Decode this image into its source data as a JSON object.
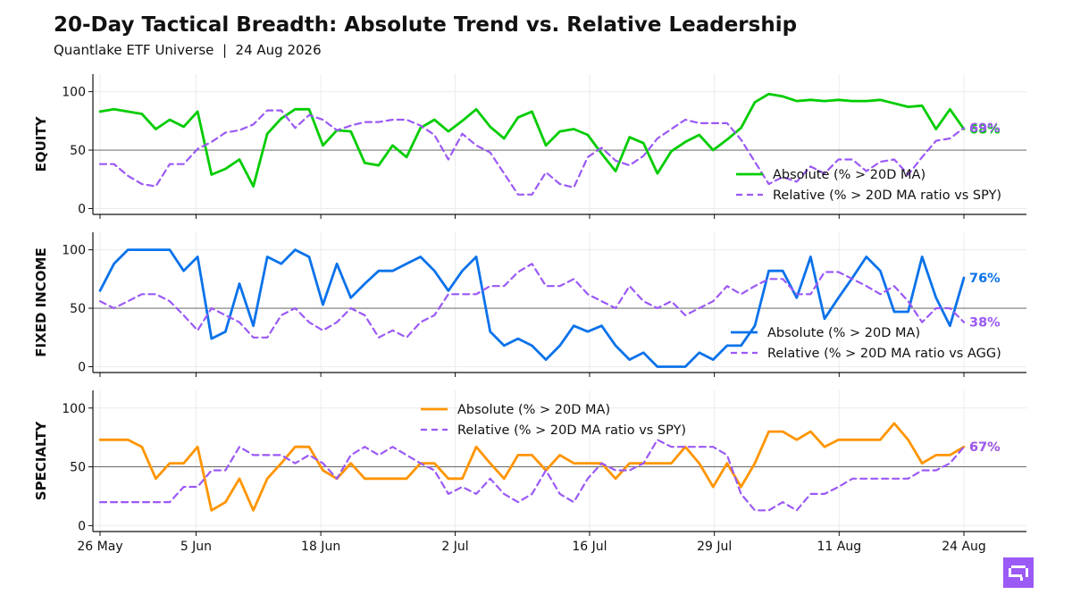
{
  "header": {
    "title": "20-Day Tactical Breadth: Absolute Trend vs. Relative Leadership",
    "subtitle": "Quantlake ETF Universe  |  24 Aug 2026"
  },
  "colors": {
    "equity_absolute": "#00cc00",
    "fixed_income_absolute": "#0a72ea",
    "specialty_absolute": "#ff9500",
    "relative": "#9b59f5",
    "logo_bg": "#9b59f5"
  },
  "chart_data": [
    {
      "type": "line",
      "panel": "equity",
      "ylabel": "EQUITY",
      "ylim": [
        -5,
        115
      ],
      "yticks": [
        0,
        50,
        100
      ],
      "reference_line": 50,
      "x_start": "2026-05-26",
      "x_end": "2026-08-24",
      "xticks": [
        "26 May",
        "5 Jun",
        "18 Jun",
        "2 Jul",
        "16 Jul",
        "29 Jul",
        "11 Aug",
        "24 Aug"
      ],
      "grid": true,
      "legend_position": "lower-right",
      "series": [
        {
          "name": "Absolute (% > 20D MA)",
          "style": "solid",
          "end_label": "68%",
          "values": [
            83,
            85,
            83,
            81,
            68,
            76,
            70,
            83,
            29,
            34,
            42,
            19,
            64,
            77,
            85,
            85,
            54,
            67,
            66,
            39,
            37,
            54,
            44,
            69,
            76,
            66,
            75,
            85,
            70,
            60,
            78,
            83,
            54,
            66,
            68,
            63,
            47,
            32,
            61,
            56,
            30,
            49,
            57,
            63,
            50,
            59,
            69,
            91,
            98,
            96,
            92,
            93,
            92,
            93,
            92,
            92,
            93,
            90,
            87,
            88,
            68,
            85,
            68
          ]
        },
        {
          "name": "Relative (% > 20D MA ratio vs SPY)",
          "style": "dashed",
          "end_label": "69%",
          "values": [
            38,
            38,
            28,
            21,
            19,
            38,
            38,
            51,
            57,
            65,
            67,
            72,
            84,
            84,
            69,
            80,
            76,
            67,
            71,
            74,
            74,
            76,
            76,
            71,
            63,
            42,
            64,
            54,
            48,
            30,
            12,
            12,
            31,
            21,
            18,
            44,
            52,
            41,
            37,
            45,
            60,
            68,
            76,
            73,
            73,
            73,
            59,
            40,
            21,
            27,
            23,
            36,
            30,
            42,
            42,
            32,
            40,
            42,
            29,
            44,
            58,
            60,
            69
          ]
        }
      ]
    },
    {
      "type": "line",
      "panel": "fixed_income",
      "ylabel": "FIXED INCOME",
      "ylim": [
        -5,
        115
      ],
      "yticks": [
        0,
        50,
        100
      ],
      "reference_line": 50,
      "grid": true,
      "legend_position": "lower-right",
      "series": [
        {
          "name": "Absolute (% > 20D MA)",
          "style": "solid",
          "end_label": "76%",
          "values": [
            65,
            88,
            100,
            100,
            100,
            100,
            82,
            94,
            24,
            30,
            71,
            35,
            94,
            88,
            100,
            94,
            53,
            88,
            59,
            71,
            82,
            82,
            88,
            94,
            82,
            65,
            82,
            94,
            30,
            18,
            24,
            18,
            6,
            18,
            35,
            30,
            35,
            18,
            6,
            12,
            0,
            0,
            0,
            12,
            6,
            18,
            18,
            35,
            82,
            82,
            59,
            94,
            41,
            59,
            76,
            94,
            82,
            47,
            47,
            94,
            59,
            35,
            76
          ]
        },
        {
          "name": "Relative (% > 20D MA ratio vs AGG)",
          "style": "dashed",
          "end_label": "38%",
          "values": [
            56,
            50,
            56,
            62,
            62,
            56,
            44,
            31,
            50,
            44,
            38,
            25,
            25,
            44,
            50,
            38,
            31,
            38,
            50,
            44,
            25,
            31,
            25,
            38,
            44,
            62,
            62,
            62,
            69,
            69,
            81,
            88,
            69,
            69,
            75,
            62,
            56,
            50,
            69,
            56,
            50,
            56,
            44,
            50,
            56,
            69,
            62,
            69,
            75,
            75,
            62,
            62,
            81,
            81,
            75,
            69,
            62,
            69,
            56,
            38,
            50,
            50,
            38
          ]
        }
      ]
    },
    {
      "type": "line",
      "panel": "specialty",
      "ylabel": "SPECIALTY",
      "ylim": [
        -5,
        115
      ],
      "yticks": [
        0,
        50,
        100
      ],
      "reference_line": 50,
      "grid": true,
      "legend_position": "top-center",
      "series": [
        {
          "name": "Absolute (% > 20D MA)",
          "style": "solid",
          "end_label": "67%",
          "values": [
            73,
            73,
            73,
            67,
            40,
            53,
            53,
            67,
            13,
            20,
            40,
            13,
            40,
            53,
            67,
            67,
            47,
            40,
            53,
            40,
            40,
            40,
            40,
            53,
            53,
            40,
            40,
            67,
            53,
            40,
            60,
            60,
            47,
            60,
            53,
            53,
            53,
            40,
            53,
            53,
            53,
            53,
            67,
            53,
            33,
            53,
            33,
            53,
            80,
            80,
            73,
            80,
            67,
            73,
            73,
            73,
            73,
            87,
            73,
            53,
            60,
            60,
            67
          ]
        },
        {
          "name": "Relative (% > 20D MA ratio vs SPY)",
          "style": "dashed",
          "end_label": "67%",
          "values": [
            20,
            20,
            20,
            20,
            20,
            20,
            33,
            33,
            47,
            47,
            67,
            60,
            60,
            60,
            53,
            60,
            53,
            40,
            60,
            67,
            60,
            67,
            60,
            53,
            47,
            27,
            33,
            27,
            40,
            27,
            20,
            27,
            47,
            27,
            20,
            40,
            53,
            47,
            47,
            53,
            73,
            67,
            67,
            67,
            67,
            60,
            27,
            13,
            13,
            20,
            13,
            27,
            27,
            33,
            40,
            40,
            40,
            40,
            40,
            47,
            47,
            53,
            67
          ]
        }
      ]
    }
  ]
}
